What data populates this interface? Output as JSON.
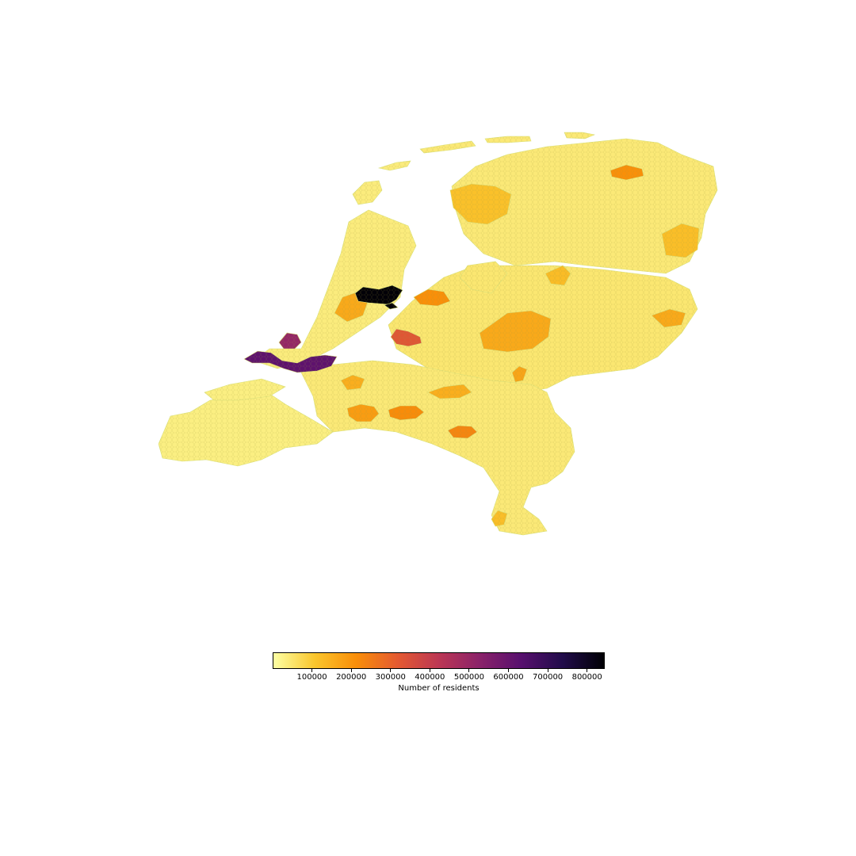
{
  "map": {
    "colormap": [
      "#fcffa4",
      "#fac62d",
      "#f98e09",
      "#e45a31",
      "#bc3754",
      "#8a226a",
      "#57106e",
      "#210c4a",
      "#000004"
    ],
    "edge_color": "#d9e07a",
    "regions": [
      {
        "name": "zuidwest-zeeland",
        "value": 30000
      },
      {
        "name": "noord-holland-kop",
        "value": 35000
      },
      {
        "name": "friesland-groningen",
        "value": 40000
      },
      {
        "name": "gelderland-overijssel",
        "value": 45000
      },
      {
        "name": "noord-brabant-limburg",
        "value": 40000
      },
      {
        "name": "leeuwarden-region",
        "value": 115000
      },
      {
        "name": "groningen-city",
        "value": 210000
      },
      {
        "name": "drenthe-east",
        "value": 120000
      },
      {
        "name": "zwolle-region",
        "value": 125000
      },
      {
        "name": "apeldoorn-region",
        "value": 160000
      },
      {
        "name": "enschede-region",
        "value": 160000
      },
      {
        "name": "almere",
        "value": 210000
      },
      {
        "name": "haarlem-region",
        "value": 160000
      },
      {
        "name": "amsterdam",
        "value": 840000
      },
      {
        "name": "utrecht",
        "value": 330000
      },
      {
        "name": "the-hague",
        "value": 510000
      },
      {
        "name": "rotterdam",
        "value": 620000
      },
      {
        "name": "breda",
        "value": 185000
      },
      {
        "name": "tilburg",
        "value": 215000
      },
      {
        "name": "eindhoven",
        "value": 230000
      },
      {
        "name": "nijmegen",
        "value": 170000
      },
      {
        "name": "arnhem",
        "value": 150000
      },
      {
        "name": "den-bosch",
        "value": 150000
      },
      {
        "name": "maastricht",
        "value": 120000
      }
    ]
  },
  "colorbar": {
    "min": 0,
    "max": 845000,
    "ticks": [
      "100000",
      "200000",
      "300000",
      "400000",
      "500000",
      "600000",
      "700000",
      "800000"
    ],
    "tick_values": [
      100000,
      200000,
      300000,
      400000,
      500000,
      600000,
      700000,
      800000
    ],
    "label": "Number of residents"
  }
}
